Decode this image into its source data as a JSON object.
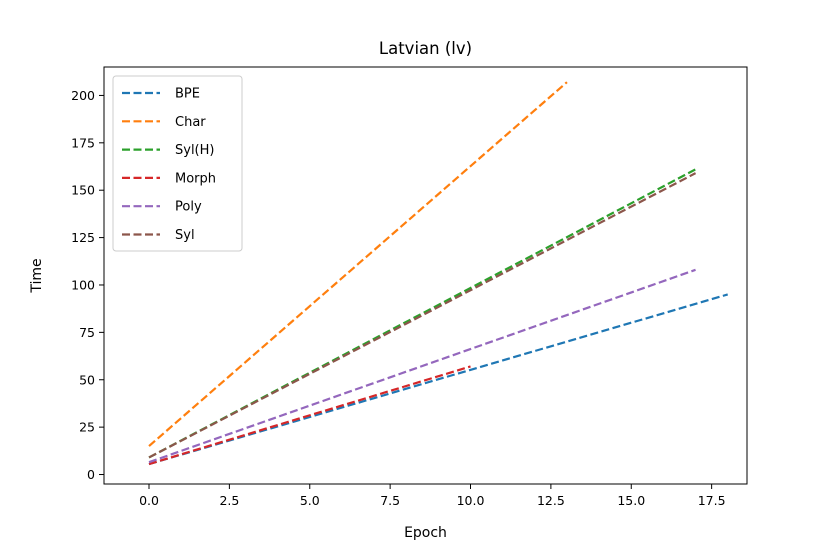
{
  "chart_data": {
    "type": "line",
    "title": "Latvian (lv)",
    "xlabel": "Epoch",
    "ylabel": "Time",
    "xlim": [
      -1.4,
      18.6
    ],
    "ylim": [
      -5,
      215
    ],
    "xticks": [
      0.0,
      2.5,
      5.0,
      7.5,
      10.0,
      12.5,
      15.0,
      17.5
    ],
    "xtick_labels": [
      "0.0",
      "2.5",
      "5.0",
      "7.5",
      "10.0",
      "12.5",
      "15.0",
      "17.5"
    ],
    "yticks": [
      0,
      25,
      50,
      75,
      100,
      125,
      150,
      175,
      200
    ],
    "ytick_labels": [
      "0",
      "25",
      "50",
      "75",
      "100",
      "125",
      "150",
      "175",
      "200"
    ],
    "grid": false,
    "legend_position": "top-left",
    "line_style": "dashed",
    "series": [
      {
        "name": "BPE",
        "color": "#1f77b4",
        "x": [
          0,
          18
        ],
        "y": [
          5.5,
          95
        ]
      },
      {
        "name": "Char",
        "color": "#ff7f0e",
        "x": [
          0,
          13
        ],
        "y": [
          15,
          207
        ]
      },
      {
        "name": "Syl(H)",
        "color": "#2ca02c",
        "x": [
          0,
          17
        ],
        "y": [
          9,
          161
        ]
      },
      {
        "name": "Morph",
        "color": "#d62728",
        "x": [
          0,
          10
        ],
        "y": [
          5.5,
          57
        ]
      },
      {
        "name": "Poly",
        "color": "#9467bd",
        "x": [
          0,
          17
        ],
        "y": [
          6.5,
          108
        ]
      },
      {
        "name": "Syl",
        "color": "#8c564b",
        "x": [
          0,
          17
        ],
        "y": [
          9,
          159
        ]
      }
    ]
  }
}
